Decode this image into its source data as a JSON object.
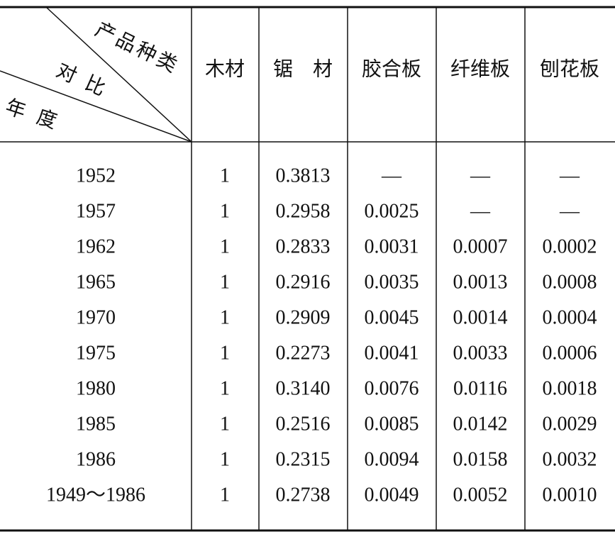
{
  "header": {
    "corner": {
      "product": "产品种类",
      "compare": "对比",
      "year": "年度"
    },
    "columns": [
      "木材",
      "锯　材",
      "胶合板",
      "纤维板",
      "刨花板"
    ]
  },
  "table": {
    "rows": [
      [
        "1952",
        "1",
        "0.3813",
        "—",
        "—",
        "—"
      ],
      [
        "1957",
        "1",
        "0.2958",
        "0.0025",
        "—",
        "—"
      ],
      [
        "1962",
        "1",
        "0.2833",
        "0.0031",
        "0.0007",
        "0.0002"
      ],
      [
        "1965",
        "1",
        "0.2916",
        "0.0035",
        "0.0013",
        "0.0008"
      ],
      [
        "1970",
        "1",
        "0.2909",
        "0.0045",
        "0.0014",
        "0.0004"
      ],
      [
        "1975",
        "1",
        "0.2273",
        "0.0041",
        "0.0033",
        "0.0006"
      ],
      [
        "1980",
        "1",
        "0.3140",
        "0.0076",
        "0.0116",
        "0.0018"
      ],
      [
        "1985",
        "1",
        "0.2516",
        "0.0085",
        "0.0142",
        "0.0029"
      ],
      [
        "1986",
        "1",
        "0.2315",
        "0.0094",
        "0.0158",
        "0.0032"
      ],
      [
        "1949～1986",
        "1",
        "0.2738",
        "0.0049",
        "0.0052",
        "0.0010"
      ]
    ]
  }
}
